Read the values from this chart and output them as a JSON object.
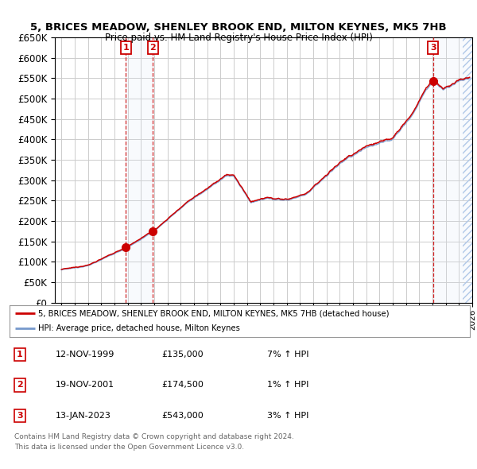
{
  "title1": "5, BRICES MEADOW, SHENLEY BROOK END, MILTON KEYNES, MK5 7HB",
  "title2": "Price paid vs. HM Land Registry's House Price Index (HPI)",
  "sales": [
    {
      "label": "1",
      "date": 1999.87,
      "price": 135000
    },
    {
      "label": "2",
      "date": 2001.89,
      "price": 174500
    },
    {
      "label": "3",
      "date": 2023.04,
      "price": 543000
    }
  ],
  "legend_line1": "5, BRICES MEADOW, SHENLEY BROOK END, MILTON KEYNES, MK5 7HB (detached house)",
  "legend_line2": "HPI: Average price, detached house, Milton Keynes",
  "table": [
    {
      "num": "1",
      "date": "12-NOV-1999",
      "price": "£135,000",
      "hpi": "7% ↑ HPI"
    },
    {
      "num": "2",
      "date": "19-NOV-2001",
      "price": "£174,500",
      "hpi": "1% ↑ HPI"
    },
    {
      "num": "3",
      "date": "13-JAN-2023",
      "price": "£543,000",
      "hpi": "3% ↑ HPI"
    }
  ],
  "footnote1": "Contains HM Land Registry data © Crown copyright and database right 2024.",
  "footnote2": "This data is licensed under the Open Government Licence v3.0.",
  "ylim": [
    0,
    650000
  ],
  "xlim_start": 1994.5,
  "xlim_end": 2026.0,
  "bg_color": "#ffffff",
  "grid_color": "#cccccc",
  "hpi_line_color": "#7799cc",
  "price_line_color": "#cc0000",
  "sale_marker_color": "#cc0000",
  "shade_color": "#dde8f5"
}
